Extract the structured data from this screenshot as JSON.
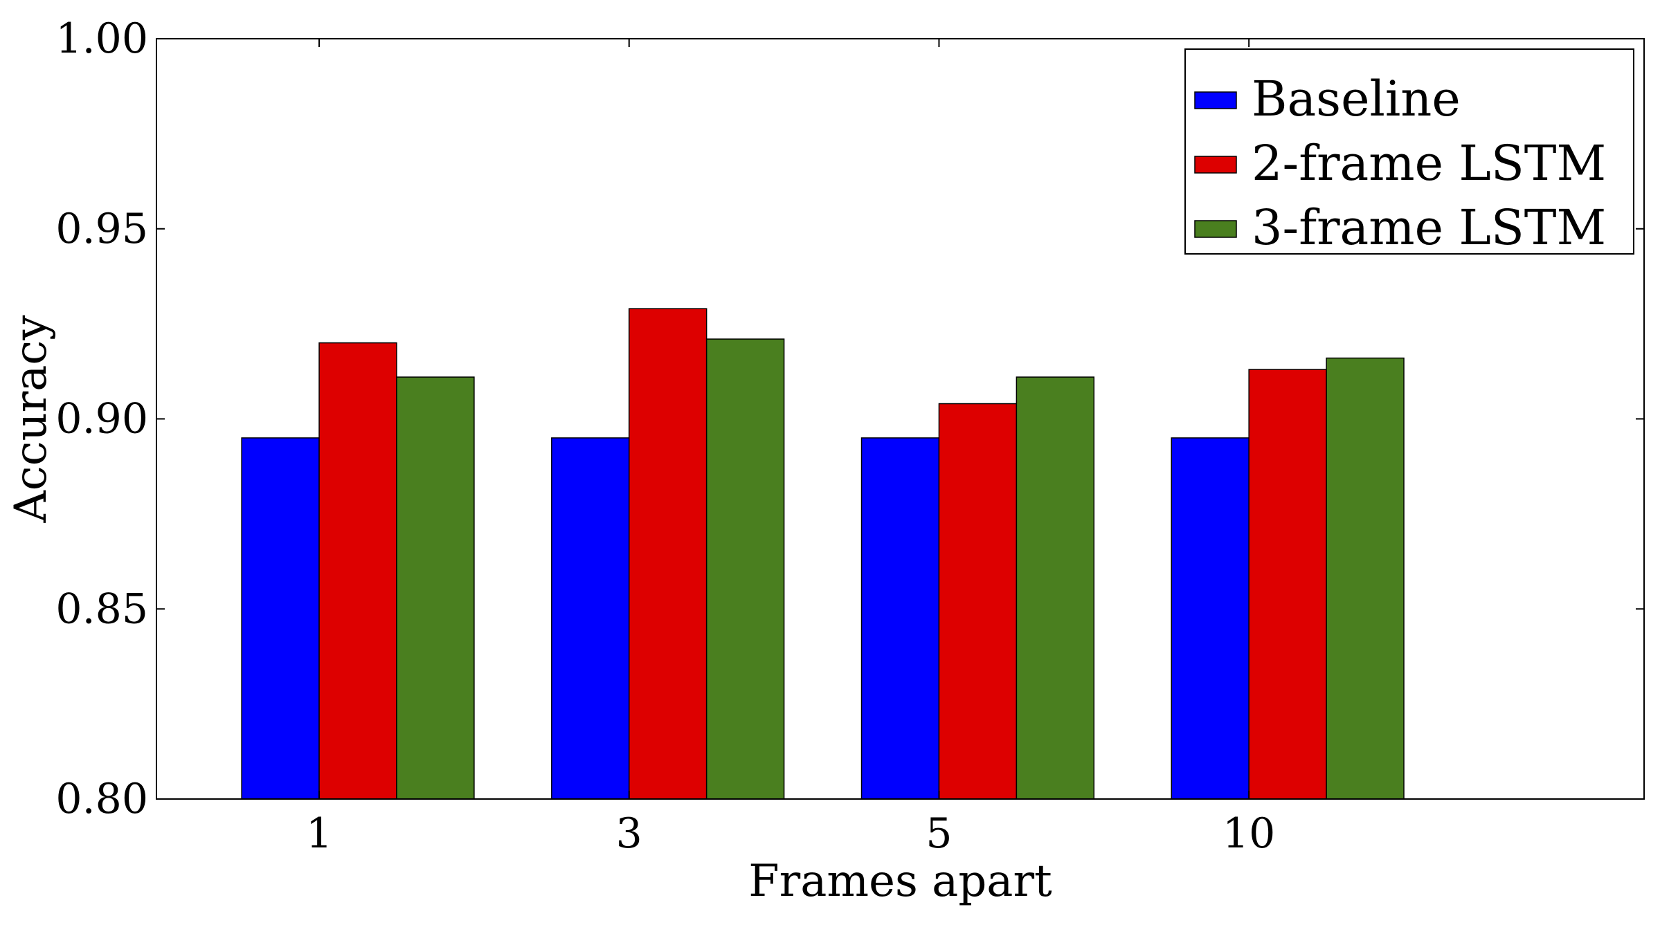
{
  "chart_data": {
    "type": "bar",
    "title": "",
    "xlabel": "Frames apart",
    "ylabel": "Accuracy",
    "categories": [
      "1",
      "3",
      "5",
      "10"
    ],
    "ylim": [
      0.8,
      1.0
    ],
    "yticks": [
      "0.80",
      "0.85",
      "0.90",
      "0.95",
      "1.00"
    ],
    "legend_position": "top-right",
    "grid": false,
    "series": [
      {
        "name": "Baseline",
        "color": "#0000ff",
        "values": [
          0.895,
          0.895,
          0.895,
          0.895
        ]
      },
      {
        "name": "2-frame LSTM",
        "color": "#dd0000",
        "values": [
          0.92,
          0.929,
          0.904,
          0.913
        ]
      },
      {
        "name": "3-frame LSTM",
        "color": "#4a7f1f",
        "values": [
          0.911,
          0.921,
          0.911,
          0.916
        ]
      }
    ]
  }
}
